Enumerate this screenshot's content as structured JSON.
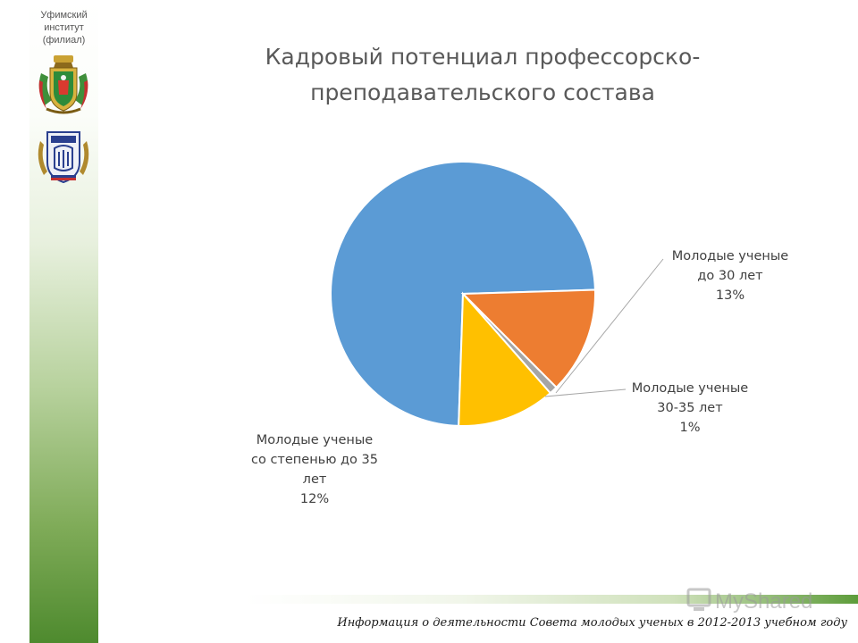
{
  "sidebar": {
    "institute": [
      "Уфимский",
      "институт",
      "(филиал)"
    ],
    "emblems": [
      "ufa-coat-of-arms-icon",
      "academy-emblem-icon"
    ]
  },
  "title": [
    "Кадровый потенциал профессорско-",
    "преподавательского состава"
  ],
  "chart_data": {
    "type": "pie",
    "title": "Кадровый потенциал профессорско-преподавательского состава",
    "slices": [
      {
        "label": "",
        "value": 74,
        "percent_label": "",
        "color": "#5b9bd5"
      },
      {
        "label": [
          "Молодые ученые",
          "до 30 лет"
        ],
        "value": 13,
        "percent_label": "13%",
        "color": "#ed7d31"
      },
      {
        "label": [
          "Молодые ученые",
          "30-35 лет"
        ],
        "value": 1,
        "percent_label": "1%",
        "color": "#a5a5a5"
      },
      {
        "label": [
          "Молодые ученые",
          "со степенью до 35",
          "лет"
        ],
        "value": 12,
        "percent_label": "12%",
        "color": "#ffc000"
      }
    ],
    "legend": "none"
  },
  "footer": "Информация о деятельности Совета молодых ученых в 2012-2013 учебном году",
  "watermark": "MyShared"
}
